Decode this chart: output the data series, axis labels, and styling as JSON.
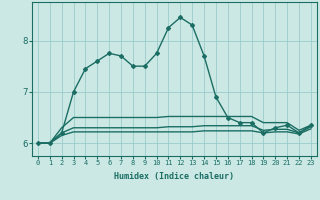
{
  "title": "",
  "xlabel": "Humidex (Indice chaleur)",
  "background_color": "#cce8e4",
  "line_color": "#1a6e64",
  "grid_color": "#99cccc",
  "x_values": [
    0,
    1,
    2,
    3,
    4,
    5,
    6,
    7,
    8,
    9,
    10,
    11,
    12,
    13,
    14,
    15,
    16,
    17,
    18,
    19,
    20,
    21,
    22,
    23
  ],
  "line1": [
    6.0,
    6.0,
    6.2,
    7.0,
    7.45,
    7.6,
    7.75,
    7.7,
    7.5,
    7.5,
    7.75,
    8.25,
    8.45,
    8.3,
    7.7,
    6.9,
    6.5,
    6.4,
    6.4,
    6.2,
    6.3,
    6.35,
    6.2,
    6.35
  ],
  "line2": [
    6.0,
    6.0,
    6.3,
    6.5,
    6.5,
    6.5,
    6.5,
    6.5,
    6.5,
    6.5,
    6.5,
    6.52,
    6.52,
    6.52,
    6.52,
    6.52,
    6.52,
    6.52,
    6.52,
    6.4,
    6.4,
    6.4,
    6.25,
    6.35
  ],
  "line3": [
    6.0,
    6.0,
    6.2,
    6.3,
    6.3,
    6.3,
    6.3,
    6.3,
    6.3,
    6.3,
    6.3,
    6.32,
    6.32,
    6.32,
    6.34,
    6.34,
    6.34,
    6.34,
    6.34,
    6.25,
    6.27,
    6.27,
    6.2,
    6.32
  ],
  "line4": [
    6.0,
    6.0,
    6.15,
    6.22,
    6.22,
    6.22,
    6.22,
    6.22,
    6.22,
    6.22,
    6.22,
    6.22,
    6.22,
    6.22,
    6.24,
    6.24,
    6.24,
    6.24,
    6.24,
    6.2,
    6.22,
    6.22,
    6.18,
    6.28
  ],
  "ylim": [
    5.75,
    8.75
  ],
  "yticks": [
    6,
    7,
    8
  ],
  "xticks": [
    0,
    1,
    2,
    3,
    4,
    5,
    6,
    7,
    8,
    9,
    10,
    11,
    12,
    13,
    14,
    15,
    16,
    17,
    18,
    19,
    20,
    21,
    22,
    23
  ],
  "marker": "D",
  "marker_size": 2.0,
  "line_width": 1.0
}
